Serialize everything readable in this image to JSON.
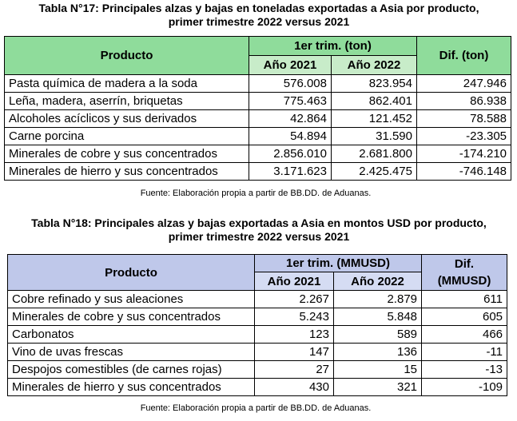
{
  "table17": {
    "title_line1": "Tabla N°17: Principales alzas y bajas en toneladas exportadas a Asia por producto,",
    "title_line2": "primer trimestre 2022 versus 2021",
    "col_product": "Producto",
    "col_period": "1er trim. (ton)",
    "col_2021": "Año 2021",
    "col_2022": "Año 2022",
    "col_diff": "Dif. (ton)",
    "rows": [
      {
        "product": "Pasta química de madera a la soda",
        "y2021": "576.008",
        "y2022": "823.954",
        "diff": "247.946"
      },
      {
        "product": "Leña, madera, aserrín, briquetas",
        "y2021": "775.463",
        "y2022": "862.401",
        "diff": "86.938"
      },
      {
        "product": "Alcoholes acíclicos y sus derivados",
        "y2021": "42.864",
        "y2022": "121.452",
        "diff": "78.588"
      },
      {
        "product": "Carne porcina",
        "y2021": "54.894",
        "y2022": "31.590",
        "diff": "-23.305"
      },
      {
        "product": "Minerales de cobre y sus concentrados",
        "y2021": "2.856.010",
        "y2022": "2.681.800",
        "diff": "-174.210"
      },
      {
        "product": "Minerales de hierro y sus concentrados",
        "y2021": "3.171.623",
        "y2022": "2.425.475",
        "diff": "-746.148"
      }
    ],
    "source": "Fuente: Elaboración propia a partir de BB.DD. de Aduanas."
  },
  "table18": {
    "title_line1": "Tabla N°18: Principales alzas y bajas exportadas a Asia en montos USD por producto,",
    "title_line2": "primer trimestre 2022 versus 2021",
    "col_product": "Producto",
    "col_period": "1er trim. (MMUSD)",
    "col_2021": "Año 2021",
    "col_2022": "Año 2022",
    "col_diff_line1": "Dif.",
    "col_diff_line2": "(MMUSD)",
    "rows": [
      {
        "product": "Cobre refinado y sus aleaciones",
        "y2021": "2.267",
        "y2022": "2.879",
        "diff": "611"
      },
      {
        "product": "Minerales de cobre y sus concentrados",
        "y2021": "5.243",
        "y2022": "5.848",
        "diff": "605"
      },
      {
        "product": "Carbonatos",
        "y2021": "123",
        "y2022": "589",
        "diff": "466"
      },
      {
        "product": "Vino de uvas frescas",
        "y2021": "147",
        "y2022": "136",
        "diff": "-11"
      },
      {
        "product": "Despojos comestibles (de carnes rojas)",
        "y2021": "27",
        "y2022": "15",
        "diff": "-13"
      },
      {
        "product": "Minerales de hierro y sus concentrados",
        "y2021": "430",
        "y2022": "321",
        "diff": "-109"
      }
    ],
    "source": "Fuente: Elaboración propia a partir de BB.DD. de Aduanas."
  }
}
